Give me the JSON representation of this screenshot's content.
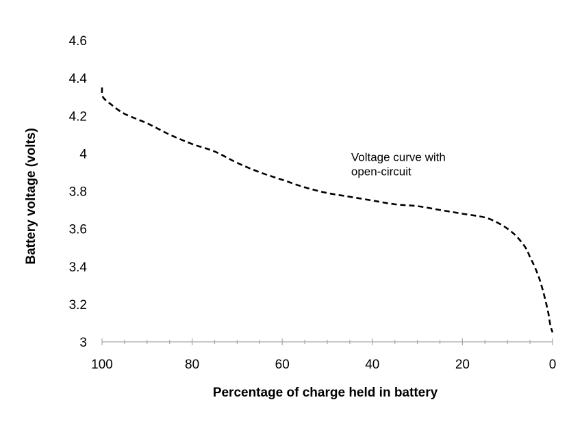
{
  "chart_data": {
    "type": "line",
    "title": "",
    "xlabel": "Percentage of charge held in battery",
    "ylabel": "Battery voltage (volts)",
    "xlim": [
      100,
      0
    ],
    "ylim": [
      3,
      4.6
    ],
    "x_ticks": [
      100,
      80,
      60,
      40,
      20,
      0
    ],
    "x_tick_labels": [
      "100",
      "80",
      "60",
      "40",
      "20",
      "0"
    ],
    "y_ticks": [
      3,
      3.2,
      3.4,
      3.6,
      3.8,
      4,
      4.2,
      4.4,
      4.6
    ],
    "y_tick_labels": [
      "3",
      "3.2",
      "3.4",
      "3.6",
      "3.8",
      "4",
      "4.2",
      "4.4",
      "4.6"
    ],
    "grid": false,
    "legend": "none",
    "annotations": [
      {
        "lines": [
          "Voltage curve with",
          "open-circuit"
        ],
        "x": 44.7,
        "y": 3.96
      }
    ],
    "series": [
      {
        "name": "Voltage curve with open-circuit",
        "style": "dashed",
        "x": [
          100,
          99.8,
          98,
          95,
          90,
          85,
          80,
          75,
          70,
          65,
          60,
          55,
          50,
          45,
          40,
          35,
          30,
          25,
          20,
          15,
          12,
          10,
          8,
          6,
          5,
          4,
          3,
          2,
          1,
          0.5,
          0
        ],
        "y": [
          4.35,
          4.3,
          4.26,
          4.21,
          4.16,
          4.1,
          4.05,
          4.01,
          3.95,
          3.9,
          3.86,
          3.82,
          3.79,
          3.77,
          3.75,
          3.73,
          3.72,
          3.7,
          3.68,
          3.66,
          3.63,
          3.6,
          3.56,
          3.5,
          3.45,
          3.4,
          3.34,
          3.26,
          3.16,
          3.09,
          3.05
        ]
      }
    ]
  }
}
